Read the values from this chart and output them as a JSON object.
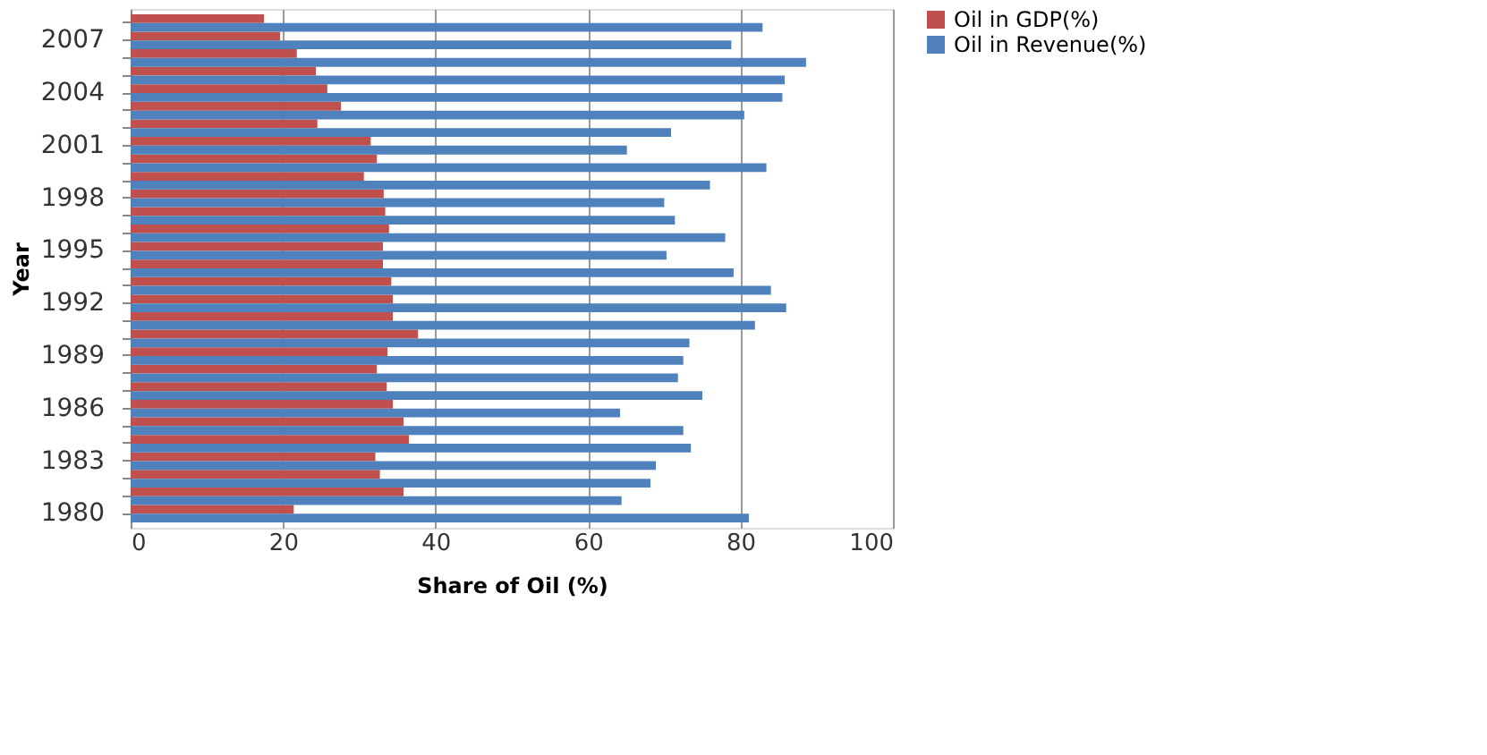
{
  "chart_data": {
    "type": "bar",
    "orientation": "horizontal",
    "xlabel": "Share of Oil (%)",
    "ylabel": "Year",
    "categories": [
      null,
      "2007",
      null,
      null,
      "2004",
      null,
      null,
      "2001",
      null,
      null,
      "1998",
      null,
      null,
      "1995",
      null,
      null,
      "1992",
      null,
      null,
      "1989",
      null,
      null,
      "1986",
      null,
      null,
      "1983",
      null,
      null,
      "1980"
    ],
    "series": [
      {
        "name": "Oil in GDP(%)",
        "color": "#c0504d",
        "values": [
          17.5,
          19.6,
          21.8,
          24.3,
          25.8,
          27.6,
          24.5,
          31.5,
          32.3,
          30.6,
          33.2,
          33.4,
          33.9,
          33.1,
          33.1,
          34.2,
          34.4,
          34.4,
          37.7,
          33.7,
          32.3,
          33.6,
          34.4,
          35.8,
          36.5,
          32.1,
          32.7,
          35.8,
          21.4
        ]
      },
      {
        "name": "Oil in Revenue(%)",
        "color": "#4f81bd",
        "values": [
          82.9,
          78.8,
          88.6,
          85.8,
          85.5,
          80.5,
          70.9,
          65.1,
          83.4,
          76.0,
          70.0,
          71.4,
          78.0,
          70.3,
          79.1,
          84.0,
          86.0,
          81.9,
          73.3,
          72.5,
          71.8,
          75.0,
          64.2,
          72.5,
          73.5,
          68.9,
          68.2,
          64.4,
          81.1
        ]
      }
    ],
    "xlim": [
      0,
      100
    ],
    "xticks": [
      0,
      20,
      40,
      60,
      80,
      100
    ],
    "grid": "x",
    "legend": "right"
  }
}
